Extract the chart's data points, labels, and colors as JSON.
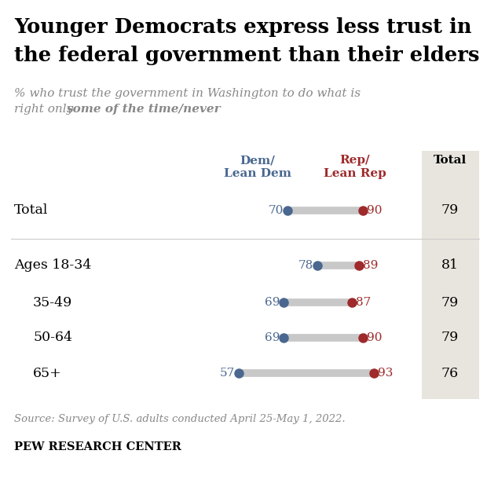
{
  "title_line1": "Younger Democrats express less trust in",
  "title_line2": "the federal government than their elders",
  "subtitle_part1": "% who trust the government in Washington to do what is",
  "subtitle_part2": "right only ",
  "subtitle_bold": "some of the time/never",
  "rows": [
    {
      "label": "Total",
      "dem": 70,
      "rep": 90,
      "total": 79,
      "indent": false,
      "group_start": true
    },
    {
      "label": "Ages 18-34",
      "dem": 78,
      "rep": 89,
      "total": 81,
      "indent": false,
      "group_start": true
    },
    {
      "label": "35-49",
      "dem": 69,
      "rep": 87,
      "total": 79,
      "indent": true,
      "group_start": false
    },
    {
      "label": "50-64",
      "dem": 69,
      "rep": 90,
      "total": 79,
      "indent": true,
      "group_start": false
    },
    {
      "label": "65+",
      "dem": 57,
      "rep": 93,
      "total": 76,
      "indent": true,
      "group_start": false
    }
  ],
  "dem_color": "#4a6790",
  "rep_color": "#9e2a2b",
  "line_color": "#c8c8c8",
  "total_bg_color": "#e8e5de",
  "source_text": "Source: Survey of U.S. adults conducted April 25-May 1, 2022.",
  "footer_text": "PEW RESEARCH CENTER",
  "col_dem_label1": "Dem/",
  "col_dem_label2": "Lean Dem",
  "col_rep_label1": "Rep/",
  "col_rep_label2": "Lean Rep",
  "col_total_label": "Total",
  "val_min": 50,
  "val_max": 100
}
